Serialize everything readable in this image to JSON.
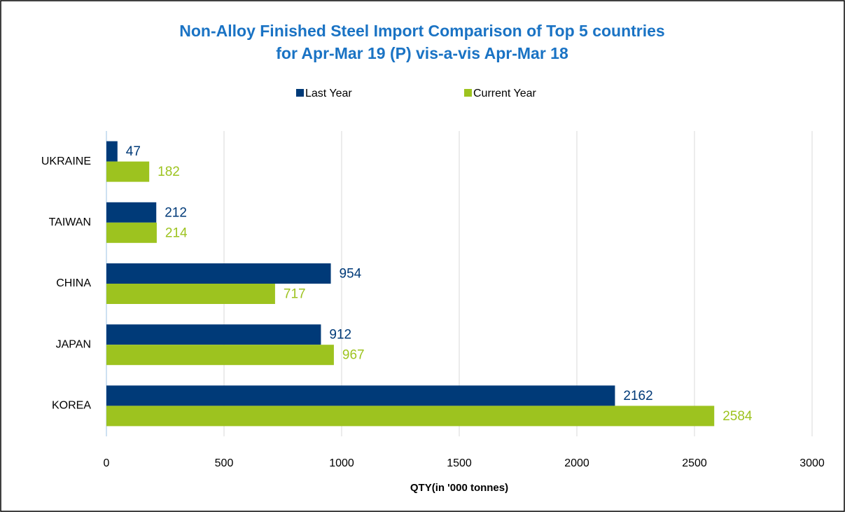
{
  "chart_data": {
    "type": "hbar",
    "title": [
      "Non-Alloy Finished Steel Import Comparison of Top 5 countries",
      "for Apr-Mar 19 (P)  vis-a-vis Apr-Mar 18"
    ],
    "x_label": "QTY(in '000 tonnes)",
    "categories": [
      "UKRAINE",
      "TAIWAN",
      "CHINA",
      "JAPAN",
      "KOREA"
    ],
    "series": [
      {
        "name": "Last Year",
        "color": "#003a78",
        "values": [
          47,
          212,
          954,
          912,
          2162
        ]
      },
      {
        "name": "Current Year",
        "color": "#9dc31f",
        "values": [
          182,
          214,
          717,
          967,
          2584
        ]
      }
    ],
    "xlim": [
      0,
      3000
    ],
    "xticks": [
      0,
      500,
      1000,
      1500,
      2000,
      2500,
      3000
    ],
    "grid": true,
    "legend": "top"
  }
}
